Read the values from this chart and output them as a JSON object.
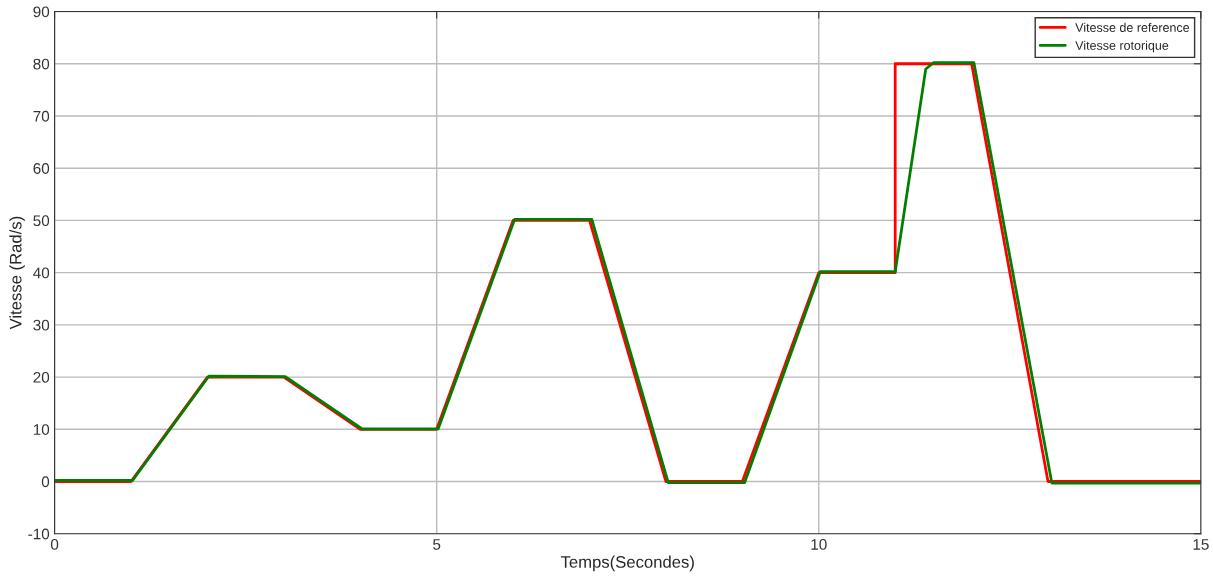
{
  "chart_data": {
    "type": "line",
    "xlabel": "Temps(Secondes)",
    "ylabel": "Vitesse (Rad/s)",
    "xlim": [
      0,
      15
    ],
    "ylim": [
      -10,
      90
    ],
    "xticks": [
      0,
      5,
      10,
      15
    ],
    "yticks": [
      -10,
      0,
      10,
      20,
      30,
      40,
      50,
      60,
      70,
      80,
      90
    ],
    "grid": true,
    "legend": "top right",
    "marker": "none",
    "line_style": "solid",
    "series": [
      {
        "name": "Vitesse de reference",
        "color": "#ff0000",
        "x": [
          0,
          1,
          2,
          3,
          4,
          5,
          6,
          7,
          8,
          9,
          10,
          11,
          11,
          12,
          13,
          15
        ],
        "values": [
          0,
          0,
          20,
          20,
          10,
          10,
          50,
          50,
          0,
          0,
          40,
          40,
          80,
          80,
          0,
          0
        ]
      },
      {
        "name": "Vitesse rotorique",
        "color": "#008000",
        "x": [
          0,
          1.02,
          2.02,
          3.02,
          4.02,
          5.02,
          6.02,
          7.03,
          8.03,
          9.03,
          10.02,
          11.0,
          11.4,
          11.5,
          12.03,
          13.05,
          15
        ],
        "values": [
          0.2,
          0.2,
          20.2,
          20.1,
          10.1,
          10.1,
          50.2,
          50.2,
          -0.2,
          -0.2,
          40.2,
          40.2,
          79,
          80.2,
          80.2,
          -0.3,
          -0.3
        ]
      }
    ]
  }
}
